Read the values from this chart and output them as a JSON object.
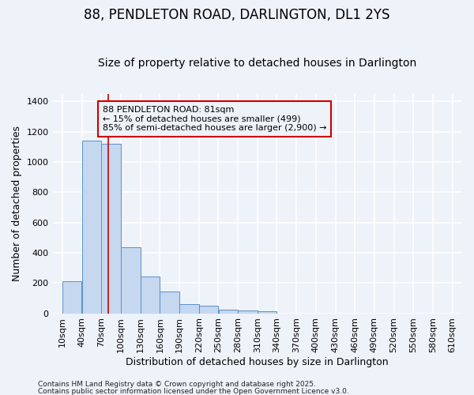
{
  "title": "88, PENDLETON ROAD, DARLINGTON, DL1 2YS",
  "subtitle": "Size of property relative to detached houses in Darlington",
  "xlabel": "Distribution of detached houses by size in Darlington",
  "ylabel": "Number of detached properties",
  "bin_edges": [
    10,
    40,
    70,
    100,
    130,
    160,
    190,
    220,
    250,
    280,
    310,
    340,
    370,
    400,
    430,
    460,
    490,
    520,
    550,
    580,
    610
  ],
  "bar_heights": [
    210,
    1140,
    1120,
    435,
    245,
    145,
    60,
    50,
    25,
    20,
    15,
    0,
    0,
    0,
    0,
    0,
    0,
    0,
    0,
    0
  ],
  "bar_color": "#c5d8f0",
  "bar_edge_color": "#5b8fc9",
  "red_line_x": 81,
  "red_line_color": "#cc0000",
  "ylim": [
    0,
    1450
  ],
  "yticks": [
    0,
    200,
    400,
    600,
    800,
    1000,
    1200,
    1400
  ],
  "xtick_labels": [
    "10sqm",
    "40sqm",
    "70sqm",
    "100sqm",
    "130sqm",
    "160sqm",
    "190sqm",
    "220sqm",
    "250sqm",
    "280sqm",
    "310sqm",
    "340sqm",
    "370sqm",
    "400sqm",
    "430sqm",
    "460sqm",
    "490sqm",
    "520sqm",
    "550sqm",
    "580sqm",
    "610sqm"
  ],
  "annotation_box_text": "88 PENDLETON ROAD: 81sqm\n← 15% of detached houses are smaller (499)\n85% of semi-detached houses are larger (2,900) →",
  "bg_color": "#eef2f9",
  "grid_color": "#ffffff",
  "footnote1": "Contains HM Land Registry data © Crown copyright and database right 2025.",
  "footnote2": "Contains public sector information licensed under the Open Government Licence v3.0.",
  "title_fontsize": 12,
  "subtitle_fontsize": 10,
  "xlabel_fontsize": 9,
  "ylabel_fontsize": 9,
  "tick_fontsize": 8,
  "annot_fontsize": 8
}
